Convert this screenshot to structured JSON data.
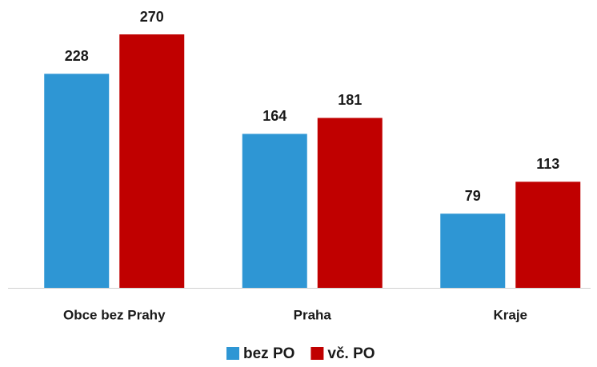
{
  "chart_data": {
    "type": "bar",
    "categories": [
      "Obce bez Prahy",
      "Praha",
      "Kraje"
    ],
    "series": [
      {
        "name": "bez PO",
        "color": "#2e96d4",
        "values": [
          228,
          164,
          79
        ]
      },
      {
        "name": "vč. PO",
        "color": "#c00000",
        "values": [
          270,
          181,
          113
        ]
      }
    ],
    "legend": "bottom"
  }
}
